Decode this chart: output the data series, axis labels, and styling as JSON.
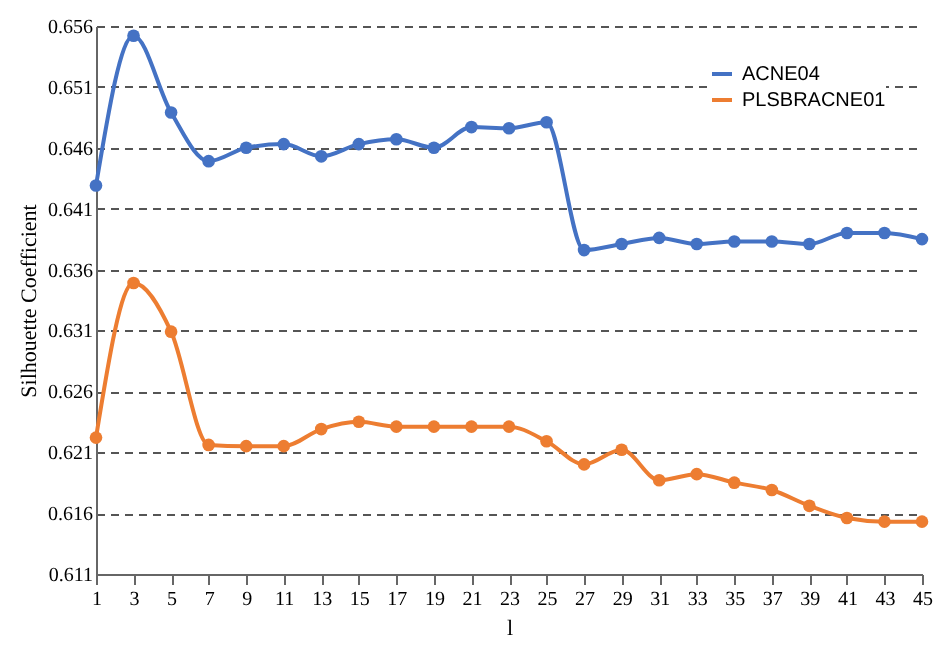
{
  "chart_data": {
    "type": "line",
    "xlabel": "l",
    "ylabel": "Silhouette Coefficient",
    "x": [
      1,
      3,
      5,
      7,
      9,
      11,
      13,
      15,
      17,
      19,
      21,
      23,
      25,
      27,
      29,
      31,
      33,
      35,
      37,
      39,
      41,
      43,
      45
    ],
    "series": [
      {
        "name": "ACNE04",
        "color": "#4472c4",
        "values": [
          0.6429,
          0.6552,
          0.6489,
          0.6449,
          0.646,
          0.6463,
          0.6453,
          0.6463,
          0.6467,
          0.646,
          0.6477,
          0.6476,
          0.6481,
          0.6376,
          0.6381,
          0.6386,
          0.6381,
          0.6383,
          0.6383,
          0.6381,
          0.639,
          0.639,
          0.6385
        ]
      },
      {
        "name": "PLSBRACNE01",
        "color": "#ed7d31",
        "values": [
          0.6222,
          0.6349,
          0.6309,
          0.6216,
          0.6215,
          0.6215,
          0.6229,
          0.6235,
          0.6231,
          0.6231,
          0.6231,
          0.6231,
          0.6219,
          0.62,
          0.6212,
          0.6187,
          0.6192,
          0.6185,
          0.6179,
          0.6166,
          0.6156,
          0.6153,
          0.6153
        ]
      }
    ],
    "xlim": [
      1,
      45
    ],
    "xticks": [
      1,
      3,
      5,
      7,
      9,
      11,
      13,
      15,
      17,
      19,
      21,
      23,
      25,
      27,
      29,
      31,
      33,
      35,
      37,
      39,
      41,
      43,
      45
    ],
    "ylim": [
      0.611,
      0.656
    ],
    "yticks": [
      0.611,
      0.616,
      0.621,
      0.626,
      0.631,
      0.636,
      0.641,
      0.646,
      0.651,
      0.656
    ],
    "grid": "y",
    "legend": "top right",
    "marker": "circle",
    "line_style": "solid"
  }
}
